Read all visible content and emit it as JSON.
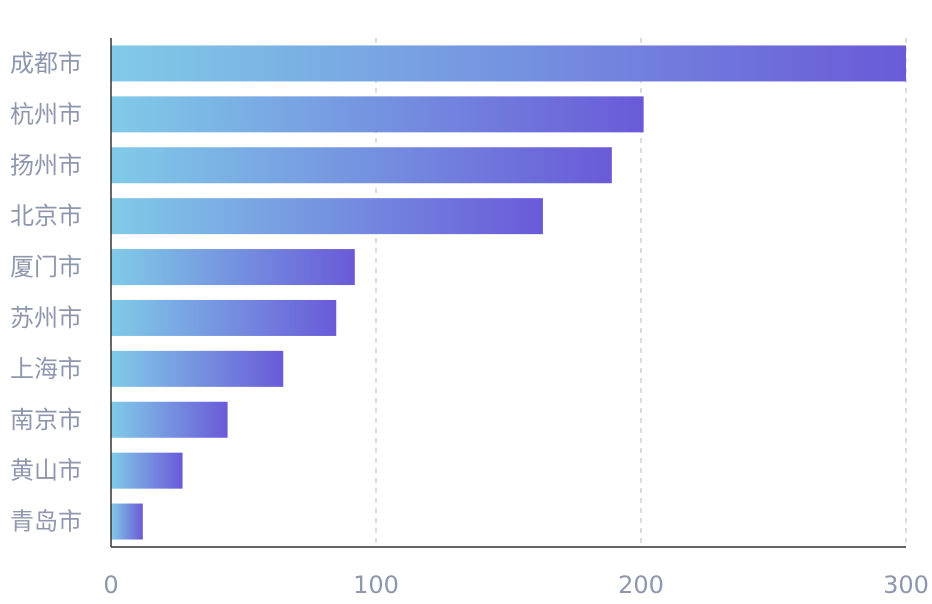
{
  "chart_data": {
    "type": "bar",
    "orientation": "horizontal",
    "categories": [
      "成都市",
      "杭州市",
      "扬州市",
      "北京市",
      "厦门市",
      "苏州市",
      "上海市",
      "南京市",
      "黄山市",
      "青岛市"
    ],
    "values": [
      300,
      201,
      189,
      163,
      92,
      85,
      65,
      44,
      27,
      12
    ],
    "xlim": [
      0,
      300
    ],
    "x_ticks": [
      "0",
      "100",
      "200",
      "300"
    ],
    "grid": "vertical dashed",
    "colors": {
      "bar_start": "#80cbe8",
      "bar_end": "#6a5ad8",
      "grid": "#d0d0d0",
      "axis": "#333333",
      "label": "#8e97ad"
    }
  }
}
